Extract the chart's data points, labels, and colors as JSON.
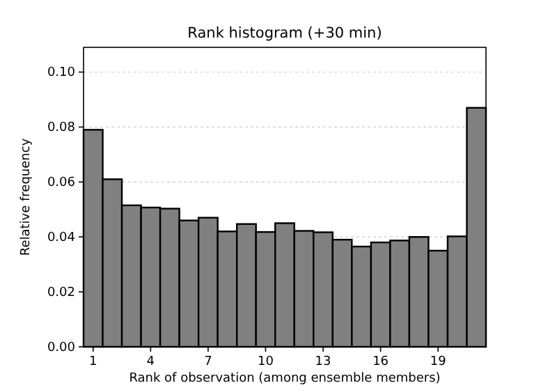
{
  "chart_data": {
    "type": "histogram",
    "title": "Rank histogram (+30 min)",
    "xlabel": "Rank of observation (among ensemble members)",
    "ylabel": "Relative frequency",
    "bins": [
      0.5,
      1.5,
      2.5,
      3.5,
      4.5,
      5.5,
      6.5,
      7.5,
      8.5,
      9.5,
      10.5,
      11.5,
      12.5,
      13.5,
      14.5,
      15.5,
      16.5,
      17.5,
      18.5,
      19.5,
      20.5,
      21.5
    ],
    "values": [
      0.079,
      0.061,
      0.0515,
      0.0507,
      0.0503,
      0.046,
      0.047,
      0.042,
      0.0447,
      0.0418,
      0.045,
      0.0422,
      0.0417,
      0.039,
      0.0365,
      0.038,
      0.0387,
      0.04,
      0.035,
      0.0402,
      0.087
    ],
    "color": "#808080",
    "xlim": [
      0.5,
      21.5
    ],
    "xticks": [
      1,
      4,
      7,
      10,
      13,
      16,
      19
    ],
    "ylim": [
      0,
      0.109
    ],
    "yticks": [
      {
        "value": 0,
        "label": "0.00"
      },
      {
        "value": 0.02,
        "label": "0.02"
      },
      {
        "value": 0.04,
        "label": "0.04"
      },
      {
        "value": 0.06,
        "label": "0.06"
      },
      {
        "value": 0.08,
        "label": "0.08"
      },
      {
        "value": 0.1,
        "label": "0.10"
      }
    ],
    "grid": "y"
  }
}
